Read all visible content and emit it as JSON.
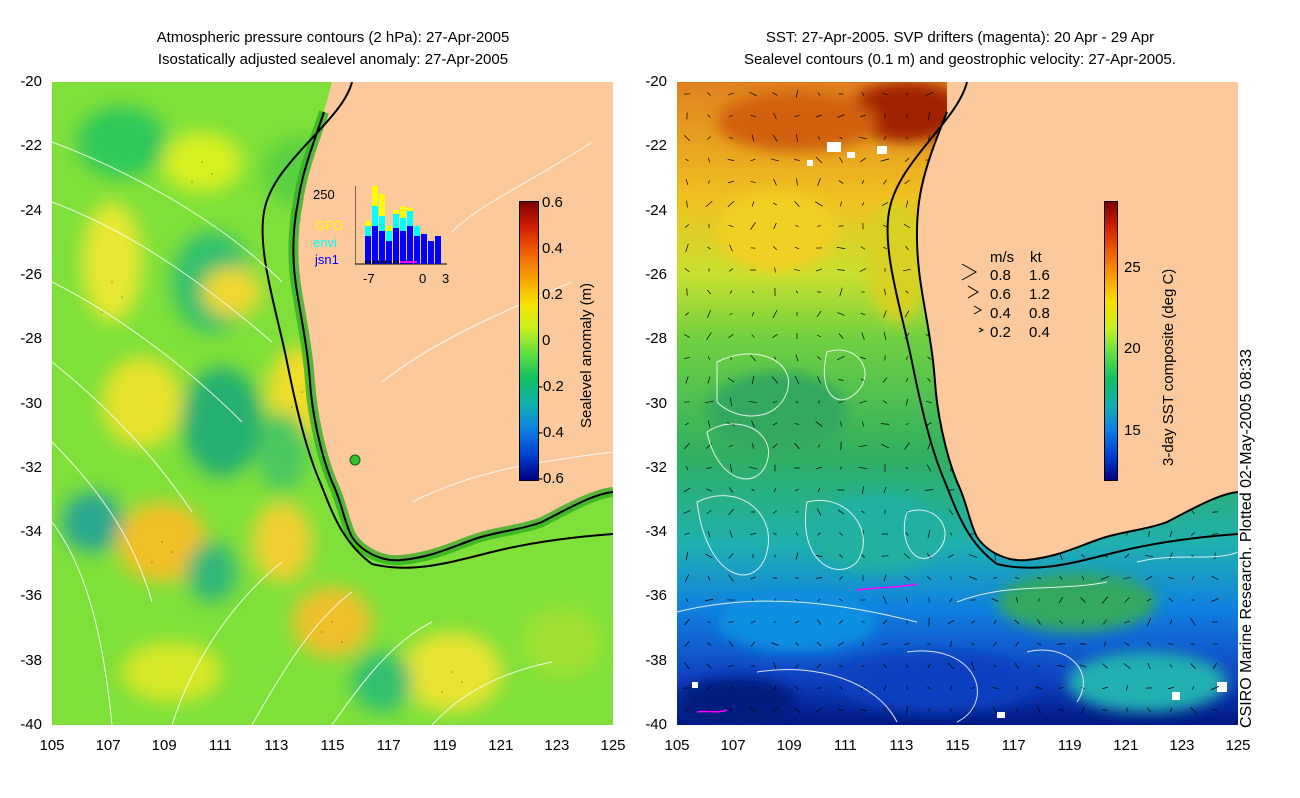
{
  "left_panel": {
    "title_line1": "Atmospheric pressure contours (2 hPa): 27-Apr-2005",
    "title_line2": "Isostatically adjusted sealevel anomaly: 27-Apr-2005",
    "colorbar_label": "Sealevel anomaly (m)",
    "colorbar_ticks": [
      "0.6",
      "0.4",
      "0.2",
      "0",
      "-0.2",
      "-0.4",
      "-0.6"
    ],
    "inset": {
      "ymax_label": "250",
      "legend": [
        {
          "label": "GFO",
          "color": "#ffff00"
        },
        {
          "label": "envi",
          "color": "#00ffff"
        },
        {
          "label": "jsn1",
          "color": "#0000ff"
        }
      ],
      "x_ticks": [
        "-7",
        "0",
        "3"
      ]
    }
  },
  "right_panel": {
    "title_line1": "SST: 27-Apr-2005. SVP drifters (magenta): 20 Apr - 29 Apr",
    "title_line2": "Sealevel contours (0.1 m) and geostrophic velocity: 27-Apr-2005.",
    "colorbar_label": "3-day SST composite (deg C)",
    "colorbar_ticks": [
      "25",
      "20",
      "15"
    ],
    "velocity_legend": {
      "header_ms": "m/s",
      "header_kt": "kt",
      "rows": [
        {
          "ms": "0.8",
          "kt": "1.6"
        },
        {
          "ms": "0.6",
          "kt": "1.2"
        },
        {
          "ms": "0.4",
          "kt": "0.8"
        },
        {
          "ms": "0.2",
          "kt": "0.4"
        }
      ]
    }
  },
  "axes": {
    "lat_ticks": [
      "-20",
      "-22",
      "-24",
      "-26",
      "-28",
      "-30",
      "-32",
      "-34",
      "-36",
      "-38",
      "-40"
    ],
    "lon_ticks": [
      "105",
      "107",
      "109",
      "111",
      "113",
      "115",
      "117",
      "119",
      "121",
      "123",
      "125"
    ]
  },
  "credit": "CSIRO Marine Research. Plotted 02-May-2005 08:33",
  "colors": {
    "land": "#fbc99b",
    "coast": "#000000",
    "contour": "#ffffff"
  }
}
